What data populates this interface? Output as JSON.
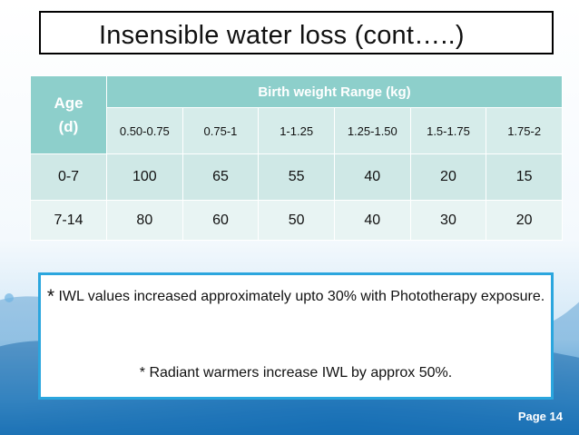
{
  "slide": {
    "title": "Insensible water loss (cont…..)",
    "page_label": "Page 14"
  },
  "table": {
    "age_header": "Age\n(d)",
    "range_header": "Birth weight Range (kg)",
    "ranges": [
      "0.50-0.75",
      "0.75-1",
      "1-1.25",
      "1.25-1.50",
      "1.5-1.75",
      "1.75-2"
    ],
    "rows": [
      {
        "age": "0-7",
        "values": [
          "100",
          "65",
          "55",
          "40",
          "20",
          "15"
        ]
      },
      {
        "age": "7-14",
        "values": [
          "80",
          "60",
          "50",
          "40",
          "30",
          "20"
        ]
      }
    ]
  },
  "notes": {
    "note1_star": "*",
    "note1_text": "IWL values increased approximately upto 30% with Phototherapy exposure.",
    "note2_text": "* Radiant warmers increase IWL by approx 50%."
  },
  "colors": {
    "header_teal": "#8dcfcb",
    "row_dark": "#cfe8e6",
    "row_light": "#e8f4f3",
    "note_border": "#2ba6de"
  }
}
